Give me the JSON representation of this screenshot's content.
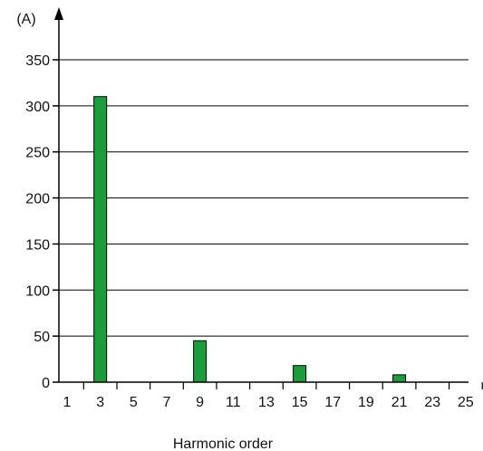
{
  "chart_data": {
    "type": "bar",
    "ylabel": "(A)",
    "xlabel": "Harmonic order",
    "ylim": [
      0,
      350
    ],
    "yticks": [
      0,
      50,
      100,
      150,
      200,
      250,
      300,
      350
    ],
    "grid": "horizontal",
    "x_tick_labels": [
      "1",
      "3",
      "5",
      "7",
      "9",
      "11",
      "13",
      "15",
      "17",
      "19",
      "21",
      "23",
      "25"
    ],
    "categories": [
      "3",
      "9",
      "15",
      "21"
    ],
    "values": [
      310,
      45,
      18,
      8
    ],
    "bar_color": "#1a9e3c",
    "bar_edge_color": "#000000"
  }
}
